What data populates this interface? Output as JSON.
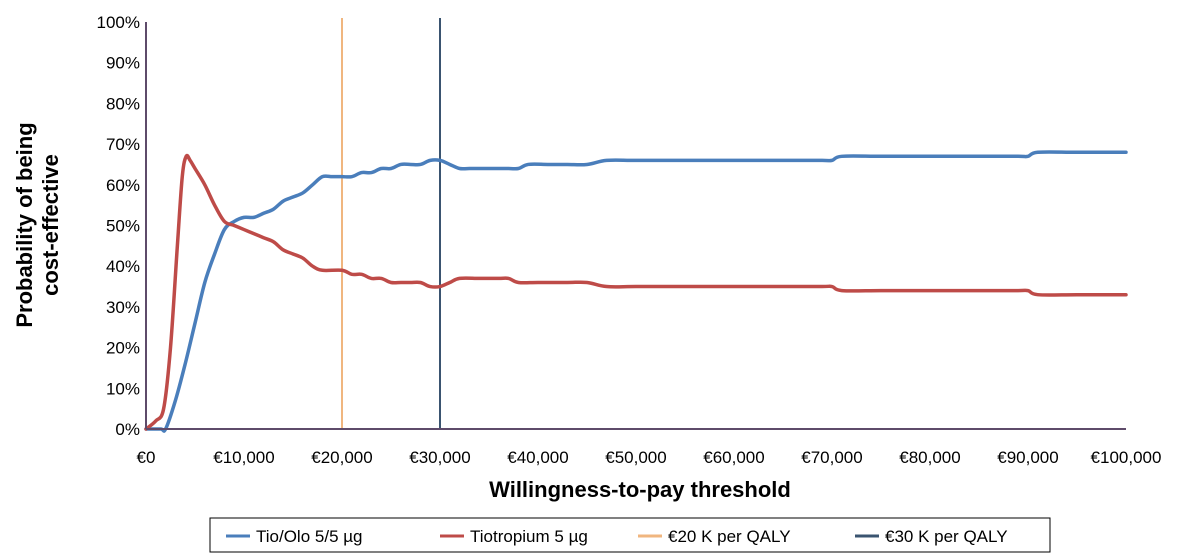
{
  "chart_data": {
    "type": "line",
    "xlabel": "Willingness-to-pay threshold",
    "ylabel": [
      "Probability of being",
      "cost-effective"
    ],
    "xlim": [
      0,
      100000
    ],
    "ylim": [
      0,
      100
    ],
    "x_ticks": [
      "€0",
      "€10,000",
      "€20,000",
      "€30,000",
      "€40,000",
      "€50,000",
      "€60,000",
      "€70,000",
      "€80,000",
      "€90,000",
      "€100,000"
    ],
    "y_ticks": [
      "0%",
      "10%",
      "20%",
      "30%",
      "40%",
      "50%",
      "60%",
      "70%",
      "80%",
      "90%",
      "100%"
    ],
    "grid": false,
    "legend_position": "bottom",
    "series": [
      {
        "name": "Tio/Olo 5/5 µg",
        "color": "#4a7ebb",
        "points": [
          [
            0,
            0
          ],
          [
            1500,
            0
          ],
          [
            2000,
            0
          ],
          [
            3000,
            7
          ],
          [
            4000,
            16
          ],
          [
            5000,
            26
          ],
          [
            6000,
            36
          ],
          [
            7000,
            43
          ],
          [
            8000,
            49
          ],
          [
            9000,
            51
          ],
          [
            10000,
            52
          ],
          [
            11000,
            52
          ],
          [
            12000,
            53
          ],
          [
            13000,
            54
          ],
          [
            14000,
            56
          ],
          [
            15000,
            57
          ],
          [
            16000,
            58
          ],
          [
            17000,
            60
          ],
          [
            18000,
            62
          ],
          [
            19000,
            62
          ],
          [
            20000,
            62
          ],
          [
            21000,
            62
          ],
          [
            22000,
            63
          ],
          [
            23000,
            63
          ],
          [
            24000,
            64
          ],
          [
            25000,
            64
          ],
          [
            26000,
            65
          ],
          [
            27000,
            65
          ],
          [
            28000,
            65
          ],
          [
            29000,
            66
          ],
          [
            30000,
            66
          ],
          [
            31000,
            65
          ],
          [
            32000,
            64
          ],
          [
            33000,
            64
          ],
          [
            35000,
            64
          ],
          [
            37000,
            64
          ],
          [
            38000,
            64
          ],
          [
            39000,
            65
          ],
          [
            41000,
            65
          ],
          [
            43000,
            65
          ],
          [
            45000,
            65
          ],
          [
            47000,
            66
          ],
          [
            50000,
            66
          ],
          [
            55000,
            66
          ],
          [
            60000,
            66
          ],
          [
            65000,
            66
          ],
          [
            69000,
            66
          ],
          [
            70000,
            66
          ],
          [
            71000,
            67
          ],
          [
            75000,
            67
          ],
          [
            80000,
            67
          ],
          [
            85000,
            67
          ],
          [
            89000,
            67
          ],
          [
            90000,
            67
          ],
          [
            91000,
            68
          ],
          [
            95000,
            68
          ],
          [
            100000,
            68
          ]
        ]
      },
      {
        "name": "Tiotropium 5 µg",
        "color": "#be4b48",
        "points": [
          [
            0,
            0
          ],
          [
            1000,
            2
          ],
          [
            1800,
            5
          ],
          [
            2500,
            20
          ],
          [
            3200,
            45
          ],
          [
            3700,
            62
          ],
          [
            4100,
            67
          ],
          [
            4500,
            66
          ],
          [
            5000,
            64
          ],
          [
            6000,
            60
          ],
          [
            7000,
            55
          ],
          [
            8000,
            51
          ],
          [
            9000,
            50
          ],
          [
            10000,
            49
          ],
          [
            11000,
            48
          ],
          [
            12000,
            47
          ],
          [
            13000,
            46
          ],
          [
            14000,
            44
          ],
          [
            15000,
            43
          ],
          [
            16000,
            42
          ],
          [
            17000,
            40
          ],
          [
            18000,
            39
          ],
          [
            20000,
            39
          ],
          [
            21000,
            38
          ],
          [
            22000,
            38
          ],
          [
            23000,
            37
          ],
          [
            24000,
            37
          ],
          [
            25000,
            36
          ],
          [
            26000,
            36
          ],
          [
            27000,
            36
          ],
          [
            28000,
            36
          ],
          [
            29000,
            35
          ],
          [
            30000,
            35
          ],
          [
            31000,
            36
          ],
          [
            32000,
            37
          ],
          [
            34000,
            37
          ],
          [
            36000,
            37
          ],
          [
            37000,
            37
          ],
          [
            38000,
            36
          ],
          [
            40000,
            36
          ],
          [
            43000,
            36
          ],
          [
            45000,
            36
          ],
          [
            47000,
            35
          ],
          [
            50000,
            35
          ],
          [
            55000,
            35
          ],
          [
            60000,
            35
          ],
          [
            65000,
            35
          ],
          [
            69000,
            35
          ],
          [
            70000,
            35
          ],
          [
            71000,
            34
          ],
          [
            75000,
            34
          ],
          [
            80000,
            34
          ],
          [
            85000,
            34
          ],
          [
            89000,
            34
          ],
          [
            90000,
            34
          ],
          [
            91000,
            33
          ],
          [
            95000,
            33
          ],
          [
            100000,
            33
          ]
        ]
      }
    ],
    "reference_lines": [
      {
        "name": "€20 K per QALY",
        "x": 20000,
        "color": "#f0b67f"
      },
      {
        "name": "€30 K per QALY",
        "x": 30000,
        "color": "#3a5470"
      }
    ],
    "axis_color": "#5e4b6a"
  }
}
